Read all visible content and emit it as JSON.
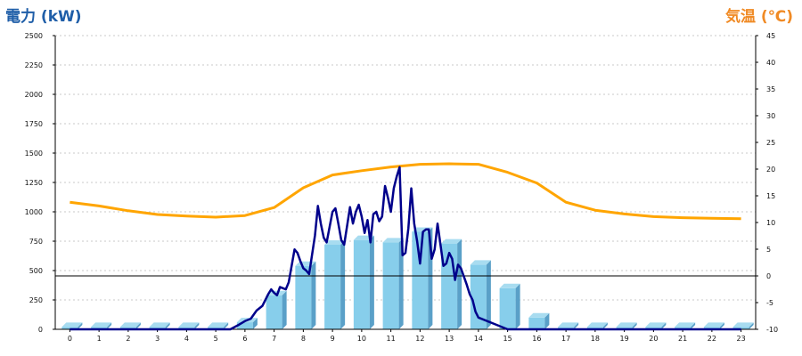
{
  "chart_data": {
    "type": "bar+line",
    "left_axis_title": "電力 (kW)",
    "right_axis_title": "気温 (℃)",
    "left_ylim": [
      0,
      2500
    ],
    "left_ticks": [
      0,
      250,
      500,
      750,
      1000,
      1250,
      1500,
      1750,
      2000,
      2250,
      2500
    ],
    "right_ylim": [
      -10,
      45
    ],
    "right_ticks": [
      -10,
      -5,
      0,
      5,
      10,
      15,
      20,
      25,
      30,
      35,
      40,
      45
    ],
    "categories": [
      "0",
      "1",
      "2",
      "3",
      "4",
      "5",
      "6",
      "7",
      "8",
      "9",
      "10",
      "11",
      "12",
      "13",
      "14",
      "15",
      "16",
      "17",
      "18",
      "19",
      "20",
      "21",
      "22",
      "23"
    ],
    "bar_values": [
      20,
      20,
      20,
      20,
      20,
      20,
      60,
      290,
      540,
      720,
      760,
      740,
      830,
      730,
      550,
      350,
      100,
      20,
      20,
      20,
      20,
      20,
      20,
      20
    ],
    "power_line": [
      [
        0,
        0
      ],
      [
        1,
        0
      ],
      [
        2,
        0
      ],
      [
        3,
        0
      ],
      [
        4,
        0
      ],
      [
        5,
        0
      ],
      [
        5.5,
        0
      ],
      [
        5.8,
        40
      ],
      [
        6.0,
        70
      ],
      [
        6.2,
        90
      ],
      [
        6.4,
        160
      ],
      [
        6.6,
        200
      ],
      [
        6.8,
        300
      ],
      [
        6.9,
        340
      ],
      [
        7.0,
        310
      ],
      [
        7.1,
        290
      ],
      [
        7.2,
        360
      ],
      [
        7.3,
        350
      ],
      [
        7.4,
        340
      ],
      [
        7.5,
        400
      ],
      [
        7.7,
        680
      ],
      [
        7.8,
        650
      ],
      [
        7.9,
        580
      ],
      [
        8.0,
        520
      ],
      [
        8.1,
        500
      ],
      [
        8.2,
        470
      ],
      [
        8.4,
        800
      ],
      [
        8.5,
        1050
      ],
      [
        8.6,
        900
      ],
      [
        8.7,
        780
      ],
      [
        8.8,
        740
      ],
      [
        8.9,
        870
      ],
      [
        9.0,
        1000
      ],
      [
        9.1,
        1030
      ],
      [
        9.2,
        900
      ],
      [
        9.3,
        760
      ],
      [
        9.4,
        720
      ],
      [
        9.6,
        1040
      ],
      [
        9.7,
        900
      ],
      [
        9.8,
        1000
      ],
      [
        9.9,
        1060
      ],
      [
        10.0,
        960
      ],
      [
        10.1,
        820
      ],
      [
        10.2,
        930
      ],
      [
        10.3,
        740
      ],
      [
        10.4,
        980
      ],
      [
        10.5,
        1000
      ],
      [
        10.6,
        920
      ],
      [
        10.7,
        960
      ],
      [
        10.8,
        1220
      ],
      [
        10.9,
        1120
      ],
      [
        11.0,
        1000
      ],
      [
        11.1,
        1200
      ],
      [
        11.2,
        1300
      ],
      [
        11.3,
        1380
      ],
      [
        11.4,
        630
      ],
      [
        11.5,
        650
      ],
      [
        11.6,
        860
      ],
      [
        11.7,
        1200
      ],
      [
        11.8,
        900
      ],
      [
        11.9,
        750
      ],
      [
        12.0,
        560
      ],
      [
        12.1,
        830
      ],
      [
        12.2,
        850
      ],
      [
        12.3,
        850
      ],
      [
        12.4,
        600
      ],
      [
        12.5,
        680
      ],
      [
        12.6,
        900
      ],
      [
        12.7,
        720
      ],
      [
        12.8,
        540
      ],
      [
        12.9,
        560
      ],
      [
        13.0,
        650
      ],
      [
        13.1,
        600
      ],
      [
        13.2,
        420
      ],
      [
        13.3,
        550
      ],
      [
        13.4,
        520
      ],
      [
        13.5,
        450
      ],
      [
        13.6,
        380
      ],
      [
        13.7,
        300
      ],
      [
        13.8,
        250
      ],
      [
        13.9,
        150
      ],
      [
        14.0,
        100
      ],
      [
        14.5,
        50
      ],
      [
        15.0,
        0
      ],
      [
        16,
        0
      ],
      [
        17,
        0
      ],
      [
        18,
        0
      ],
      [
        19,
        0
      ],
      [
        20,
        0
      ],
      [
        21,
        0
      ],
      [
        22,
        0
      ],
      [
        23,
        0
      ]
    ],
    "temperature": [
      13.8,
      13.1,
      12.2,
      11.5,
      11.2,
      11.0,
      11.3,
      12.8,
      16.5,
      18.9,
      19.7,
      20.4,
      20.9,
      21.0,
      20.9,
      19.4,
      17.4,
      13.8,
      12.3,
      11.6,
      11.1,
      10.9,
      10.8,
      10.7
    ],
    "grid": "horizontal dashed",
    "colors": {
      "bars": "#87ceeb",
      "bar_side": "#5aa0c8",
      "power_line": "#00008b",
      "temperature_line": "#ffa500",
      "left_title": "#1f5ea8",
      "right_title": "#f08a24"
    }
  }
}
